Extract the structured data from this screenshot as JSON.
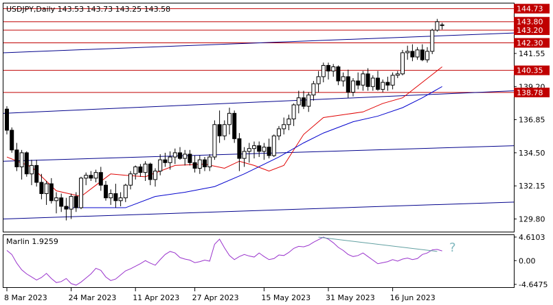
{
  "header": {
    "symbol_line": "USDJPY,Daily  143.53 143.73 143.25 143.58"
  },
  "price_axis": {
    "ticks": [
      "141.55",
      "139.20",
      "136.85",
      "134.50",
      "132.15",
      "129.80"
    ],
    "level_labels": [
      "144.73",
      "143.80",
      "143.20",
      "142.30",
      "140.35",
      "138.78"
    ]
  },
  "indicator": {
    "label": "Marlin 1.9259",
    "ticks": [
      "4.6103",
      "0.00",
      "-4.6475"
    ],
    "annotation": "?"
  },
  "time_axis": {
    "labels": [
      "8 Mar 2023",
      "24 Mar 2023",
      "11 Apr 2023",
      "27 Apr 2023",
      "15 May 2023",
      "31 May 2023",
      "16 Jun 2023"
    ]
  },
  "colors": {
    "bull_candle": "#ffffff",
    "bear_candle": "#000000",
    "level_line": "#c00000",
    "level_label_bg": "#c00000",
    "channel_line": "#00008b",
    "fast_ma": "#e00000",
    "slow_ma": "#0000cd",
    "oscillator": "#9932cc",
    "divergence_line": "#5f9ea0"
  },
  "chart_data": {
    "type": "candlestick",
    "title": "USDJPY,Daily",
    "ylim": [
      128.9,
      145.1
    ],
    "candles": [
      [
        137.6,
        137.8,
        135.8,
        136.1
      ],
      [
        136.1,
        136.3,
        134.5,
        134.7
      ],
      [
        134.7,
        135.2,
        133.2,
        133.5
      ],
      [
        133.5,
        134.7,
        132.6,
        134.5
      ],
      [
        134.5,
        134.6,
        132.8,
        133.0
      ],
      [
        133.0,
        134.0,
        132.2,
        133.6
      ],
      [
        133.6,
        134.0,
        132.1,
        132.4
      ],
      [
        132.4,
        133.0,
        131.2,
        131.6
      ],
      [
        131.6,
        132.5,
        130.8,
        132.3
      ],
      [
        132.3,
        132.7,
        130.9,
        131.1
      ],
      [
        131.1,
        131.7,
        130.2,
        131.3
      ],
      [
        131.3,
        131.6,
        130.3,
        130.7
      ],
      [
        130.7,
        131.3,
        129.7,
        130.5
      ],
      [
        130.5,
        131.6,
        129.8,
        131.4
      ],
      [
        131.4,
        131.7,
        130.3,
        130.6
      ],
      [
        130.6,
        132.8,
        130.5,
        132.7
      ],
      [
        132.7,
        133.1,
        132.2,
        132.9
      ],
      [
        132.9,
        133.2,
        132.5,
        132.7
      ],
      [
        132.7,
        133.3,
        132.4,
        133.1
      ],
      [
        133.1,
        133.5,
        131.8,
        132.2
      ],
      [
        132.2,
        132.5,
        131.1,
        131.3
      ],
      [
        131.3,
        131.9,
        130.8,
        131.6
      ],
      [
        131.6,
        132.3,
        130.6,
        131.1
      ],
      [
        131.1,
        131.7,
        130.7,
        131.3
      ],
      [
        131.3,
        132.3,
        131.0,
        132.2
      ],
      [
        132.2,
        133.2,
        131.9,
        133.0
      ],
      [
        133.0,
        133.6,
        132.6,
        133.5
      ],
      [
        133.5,
        133.7,
        132.8,
        133.1
      ],
      [
        133.1,
        133.9,
        132.5,
        133.7
      ],
      [
        133.7,
        133.8,
        132.2,
        132.6
      ],
      [
        132.6,
        133.4,
        132.1,
        133.2
      ],
      [
        133.2,
        134.4,
        132.9,
        134.0
      ],
      [
        134.0,
        134.5,
        133.5,
        133.8
      ],
      [
        133.8,
        134.6,
        133.3,
        134.2
      ],
      [
        134.2,
        134.8,
        133.7,
        134.5
      ],
      [
        134.5,
        134.9,
        134.0,
        134.1
      ],
      [
        134.1,
        134.7,
        133.6,
        134.4
      ],
      [
        134.4,
        134.7,
        133.6,
        133.8
      ],
      [
        133.8,
        134.3,
        133.1,
        133.4
      ],
      [
        133.4,
        134.3,
        133.0,
        134.0
      ],
      [
        134.0,
        134.2,
        133.2,
        133.5
      ],
      [
        133.5,
        134.4,
        133.2,
        134.2
      ],
      [
        134.2,
        136.8,
        134.0,
        136.5
      ],
      [
        136.5,
        137.5,
        135.2,
        135.7
      ],
      [
        135.7,
        136.8,
        135.4,
        136.5
      ],
      [
        136.5,
        137.7,
        135.8,
        137.3
      ],
      [
        137.3,
        137.5,
        135.2,
        135.5
      ],
      [
        135.5,
        135.9,
        133.2,
        134.1
      ],
      [
        134.1,
        134.9,
        133.5,
        134.6
      ],
      [
        134.6,
        135.2,
        133.8,
        134.8
      ],
      [
        134.8,
        135.3,
        134.1,
        135.0
      ],
      [
        135.0,
        135.3,
        134.2,
        134.6
      ],
      [
        134.6,
        135.2,
        134.0,
        134.9
      ],
      [
        134.9,
        135.5,
        134.1,
        134.3
      ],
      [
        134.3,
        135.8,
        134.2,
        135.7
      ],
      [
        135.7,
        136.4,
        135.4,
        136.2
      ],
      [
        136.2,
        137.0,
        135.8,
        136.5
      ],
      [
        136.5,
        137.2,
        136.1,
        136.9
      ],
      [
        136.9,
        138.0,
        136.4,
        137.9
      ],
      [
        137.9,
        138.9,
        137.3,
        138.4
      ],
      [
        138.4,
        138.9,
        137.6,
        137.8
      ],
      [
        137.8,
        138.8,
        137.4,
        138.6
      ],
      [
        138.6,
        139.6,
        138.2,
        139.4
      ],
      [
        139.4,
        140.3,
        138.8,
        139.9
      ],
      [
        139.9,
        140.9,
        139.5,
        140.7
      ],
      [
        140.7,
        140.9,
        139.7,
        140.3
      ],
      [
        140.3,
        140.8,
        139.9,
        140.6
      ],
      [
        140.6,
        140.7,
        139.3,
        139.6
      ],
      [
        139.6,
        140.2,
        139.2,
        139.9
      ],
      [
        139.9,
        140.4,
        138.4,
        138.8
      ],
      [
        138.8,
        139.8,
        138.5,
        139.6
      ],
      [
        139.6,
        140.2,
        139.0,
        139.3
      ],
      [
        139.3,
        140.3,
        138.9,
        140.1
      ],
      [
        140.1,
        140.5,
        138.9,
        139.2
      ],
      [
        139.2,
        140.0,
        138.9,
        139.8
      ],
      [
        139.8,
        140.3,
        138.9,
        139.0
      ],
      [
        139.0,
        139.7,
        138.8,
        139.5
      ],
      [
        139.5,
        139.9,
        138.9,
        139.3
      ],
      [
        139.3,
        140.2,
        139.0,
        140.0
      ],
      [
        140.0,
        140.3,
        139.8,
        140.1
      ],
      [
        140.1,
        141.8,
        140.0,
        141.6
      ],
      [
        141.6,
        142.1,
        141.1,
        141.7
      ],
      [
        141.7,
        142.2,
        141.0,
        141.3
      ],
      [
        141.3,
        142.0,
        141.1,
        141.8
      ],
      [
        141.8,
        142.2,
        141.0,
        141.1
      ],
      [
        141.1,
        142.0,
        140.9,
        141.7
      ],
      [
        141.7,
        143.3,
        141.5,
        143.2
      ],
      [
        143.2,
        144.0,
        143.1,
        143.8
      ],
      [
        143.53,
        143.73,
        143.25,
        143.58
      ]
    ],
    "price_levels": [
      144.73,
      143.8,
      143.2,
      142.3,
      140.35,
      138.78
    ],
    "trend_channels": [
      {
        "name": "upper channel",
        "points": [
          [
            0,
            141.6
          ],
          [
            88,
            143.0
          ]
        ]
      },
      {
        "name": "lower channel",
        "points": [
          [
            0,
            137.3
          ],
          [
            88,
            138.9
          ]
        ]
      },
      {
        "name": "third channel",
        "points": [
          [
            0,
            133.9
          ],
          [
            88,
            135.0
          ]
        ]
      },
      {
        "name": "bottom channel",
        "points": [
          [
            0,
            129.8
          ],
          [
            88,
            131.0
          ]
        ]
      }
    ],
    "fast_ma": [
      [
        0,
        134.2
      ],
      [
        5,
        133.5
      ],
      [
        10,
        131.8
      ],
      [
        15,
        131.4
      ],
      [
        18,
        132.2
      ],
      [
        21,
        133.0
      ],
      [
        24,
        132.9
      ],
      [
        28,
        132.8
      ],
      [
        34,
        133.6
      ],
      [
        40,
        133.7
      ],
      [
        44,
        133.4
      ],
      [
        47,
        133.9
      ],
      [
        50,
        133.6
      ],
      [
        53,
        133.2
      ],
      [
        56,
        133.6
      ],
      [
        60,
        135.8
      ],
      [
        64,
        137.0
      ],
      [
        68,
        137.2
      ],
      [
        72,
        137.4
      ],
      [
        76,
        138.0
      ],
      [
        80,
        138.4
      ],
      [
        84,
        139.5
      ],
      [
        88,
        140.6
      ]
    ],
    "slow_ma": [
      [
        12,
        130.6
      ],
      [
        24,
        130.6
      ],
      [
        30,
        131.4
      ],
      [
        36,
        131.7
      ],
      [
        42,
        132.1
      ],
      [
        48,
        133.0
      ],
      [
        55,
        134.2
      ],
      [
        60,
        135.2
      ],
      [
        64,
        135.9
      ],
      [
        70,
        136.7
      ],
      [
        75,
        137.1
      ],
      [
        80,
        137.7
      ],
      [
        84,
        138.4
      ],
      [
        88,
        139.2
      ]
    ],
    "oscillator": {
      "name": "Marlin",
      "current": 1.9259,
      "ylim": [
        -5.2,
        5.0
      ],
      "values": [
        2.0,
        1.2,
        -0.5,
        -1.8,
        -2.6,
        -3.2,
        -3.8,
        -3.3,
        -2.5,
        -3.5,
        -4.3,
        -4.1,
        -3.5,
        -4.5,
        -4.8,
        -4.2,
        -3.4,
        -2.6,
        -1.5,
        -1.9,
        -3.2,
        -3.9,
        -3.6,
        -2.8,
        -2.0,
        -1.6,
        -1.1,
        -0.6,
        0.0,
        -0.5,
        -0.9,
        0.2,
        1.2,
        1.8,
        1.5,
        0.6,
        0.3,
        0.1,
        -0.4,
        -0.2,
        0.1,
        -0.1,
        3.2,
        4.2,
        2.5,
        1.0,
        0.2,
        0.8,
        1.2,
        0.9,
        0.7,
        1.5,
        0.8,
        0.2,
        0.4,
        1.1,
        1.0,
        1.6,
        2.4,
        2.8,
        2.7,
        3.0,
        3.6,
        4.1,
        4.6,
        4.2,
        3.5,
        2.6,
        2.0,
        1.2,
        0.8,
        1.0,
        1.5,
        0.8,
        0.1,
        -0.6,
        -0.4,
        -0.2,
        0.2,
        -0.1,
        0.3,
        0.5,
        0.2,
        0.4,
        1.2,
        1.5,
        2.1,
        2.2,
        1.9
      ],
      "divergence_line": [
        [
          63,
          4.6
        ],
        [
          87,
          1.8
        ]
      ]
    }
  }
}
